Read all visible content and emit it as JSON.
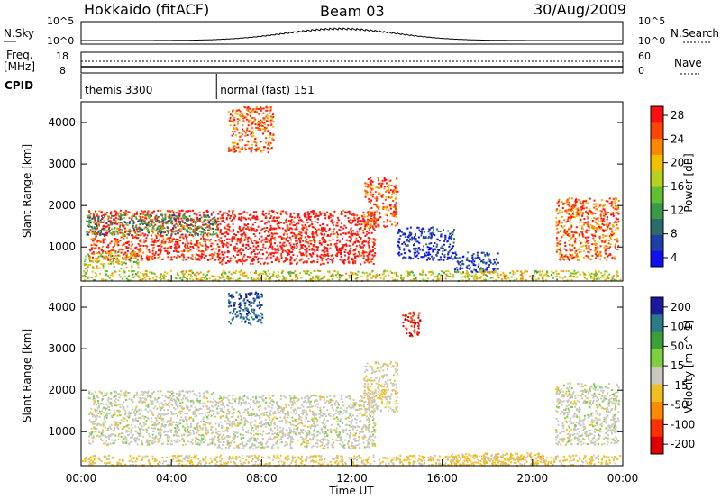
{
  "header": {
    "station": "Hokkaido (fitACF)",
    "beam": "Beam 03",
    "date": "30/Aug/2009"
  },
  "strip": {
    "nsky_label": "N.Sky",
    "nsky_ticks": [
      "10^5",
      "10^0"
    ],
    "nsearch_label": "N.Search",
    "nsearch_ticks": [
      "10^5",
      "10^0"
    ],
    "freq_label": "Freq.",
    "freq_unit": "[MHz]",
    "freq_ticks": [
      "18",
      "8"
    ],
    "nave_label": "Nave",
    "nave_ticks": [
      "60",
      "0"
    ],
    "cpid_label": "CPID",
    "cpid_segments": [
      {
        "name": "themis 3300",
        "start_hour": 0
      },
      {
        "name": "normal (fast) 151",
        "start_hour": 6
      }
    ]
  },
  "chart_data": [
    {
      "type": "heatmap",
      "name": "power",
      "ylabel": "Slant Range [km]",
      "xlabel": "",
      "xlim": [
        0,
        24
      ],
      "ylim": [
        180,
        4500
      ],
      "yticks": [
        1000,
        2000,
        3000,
        4000
      ],
      "colorbar": {
        "label": "Power [dB]",
        "ticks": [
          4,
          8,
          12,
          16,
          20,
          24,
          28
        ],
        "colors": [
          "#1010f0",
          "#1e3ea8",
          "#2d6a6a",
          "#3a9a4a",
          "#60c030",
          "#b8d020",
          "#f0c000",
          "#ff8800",
          "#ff4400",
          "#ff1010"
        ]
      },
      "regions": [
        {
          "h0": 0.3,
          "h1": 6.0,
          "r0": 700,
          "r1": 1900,
          "value": 26
        },
        {
          "h0": 0.2,
          "h1": 6.0,
          "r0": 1300,
          "r1": 1800,
          "value": 12
        },
        {
          "h0": 0.1,
          "h1": 2.5,
          "r0": 500,
          "r1": 900,
          "value": 18
        },
        {
          "h0": 6.0,
          "h1": 13.0,
          "r0": 600,
          "r1": 1900,
          "value": 28
        },
        {
          "h0": 6.5,
          "h1": 8.5,
          "r0": 3300,
          "r1": 4400,
          "value": 24
        },
        {
          "h0": 12.5,
          "h1": 14.0,
          "r0": 1500,
          "r1": 2700,
          "value": 24
        },
        {
          "h0": 14.0,
          "h1": 16.5,
          "r0": 700,
          "r1": 1500,
          "value": 6
        },
        {
          "h0": 16.5,
          "h1": 18.5,
          "r0": 400,
          "r1": 900,
          "value": 8
        },
        {
          "h0": 21.0,
          "h1": 23.8,
          "r0": 700,
          "r1": 2200,
          "value": 24
        },
        {
          "h0": 0.0,
          "h1": 23.9,
          "r0": 200,
          "r1": 450,
          "value": 18
        }
      ]
    },
    {
      "type": "heatmap",
      "name": "velocity",
      "ylabel": "Slant Range [km]",
      "xlabel": "Time UT",
      "xlim": [
        0,
        24
      ],
      "ylim": [
        180,
        4500
      ],
      "yticks": [
        1000,
        2000,
        3000,
        4000
      ],
      "xticks": [
        "00:00",
        "04:00",
        "08:00",
        "12:00",
        "16:00",
        "20:00",
        "00:00"
      ],
      "colorbar": {
        "label": "Velocity [m s^-1]",
        "ticks": [
          200,
          100,
          50,
          15,
          -15,
          -50,
          -100,
          -200
        ],
        "colors": [
          "#1a1aa0",
          "#2a7a8a",
          "#3aa03a",
          "#7cd040",
          "#c8c8c0",
          "#f0c020",
          "#ff8c00",
          "#ff3000",
          "#e00000"
        ]
      },
      "regions": [
        {
          "h0": 0.3,
          "h1": 6.0,
          "r0": 700,
          "r1": 2000,
          "value": 0
        },
        {
          "h0": 6.0,
          "h1": 13.0,
          "r0": 600,
          "r1": 1900,
          "value": 0
        },
        {
          "h0": 6.5,
          "h1": 8.0,
          "r0": 3600,
          "r1": 4400,
          "value": 150
        },
        {
          "h0": 14.2,
          "h1": 15.0,
          "r0": 3300,
          "r1": 3900,
          "value": -150
        },
        {
          "h0": 12.5,
          "h1": 14.0,
          "r0": 1500,
          "r1": 2700,
          "value": -20
        },
        {
          "h0": 16.0,
          "h1": 20.5,
          "r0": 200,
          "r1": 500,
          "value": -40
        },
        {
          "h0": 21.0,
          "h1": 23.8,
          "r0": 700,
          "r1": 2200,
          "value": 0
        },
        {
          "h0": 0.0,
          "h1": 23.9,
          "r0": 200,
          "r1": 450,
          "value": -30
        }
      ]
    }
  ]
}
